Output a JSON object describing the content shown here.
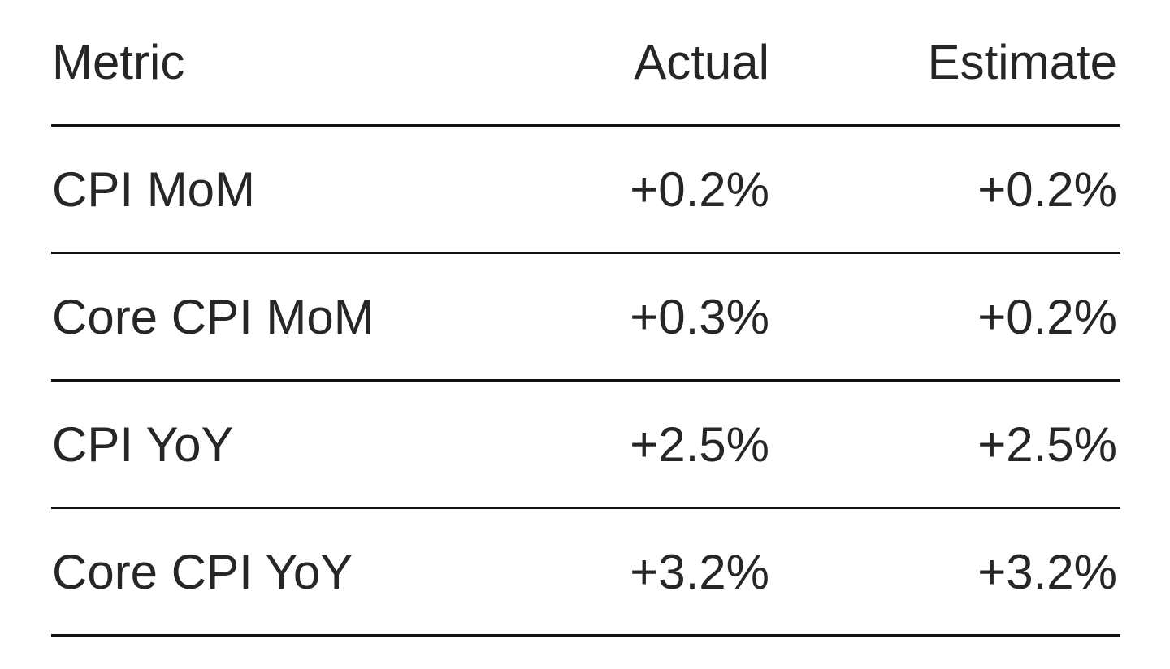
{
  "table": {
    "header": [
      "Metric",
      "Actual",
      "Estimate"
    ],
    "rows": [
      [
        "CPI MoM",
        "+0.2%",
        "+0.2%"
      ],
      [
        "Core CPI MoM",
        "+0.3%",
        "+0.2%"
      ],
      [
        "CPI YoY",
        "+2.5%",
        "+2.5%"
      ],
      [
        "Core CPI YoY",
        "+3.2%",
        "+3.2%"
      ]
    ]
  }
}
